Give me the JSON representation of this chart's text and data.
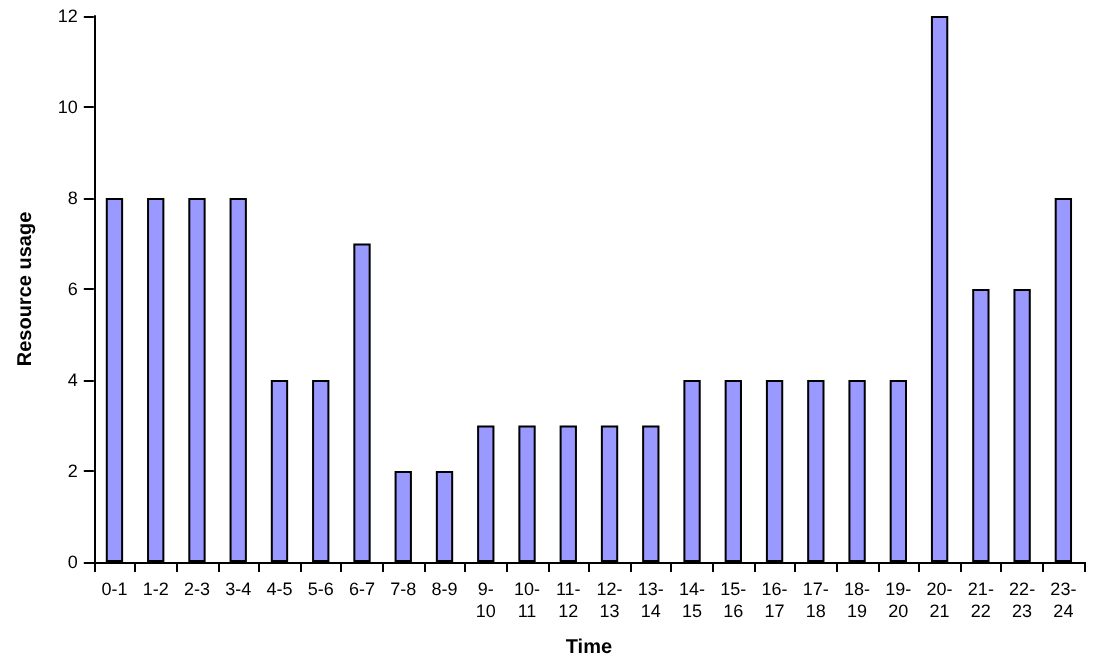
{
  "chart_data": {
    "type": "bar",
    "xlabel": "Time",
    "ylabel": "Resource usage",
    "categories": [
      "0-1",
      "1-2",
      "2-3",
      "3-4",
      "4-5",
      "5-6",
      "6-7",
      "7-8",
      "8-9",
      "9-10",
      "10-11",
      "11-12",
      "12-13",
      "13-14",
      "14-15",
      "15-16",
      "16-17",
      "17-18",
      "18-19",
      "19-20",
      "20-21",
      "21-22",
      "22-23",
      "23-24"
    ],
    "values": [
      8,
      8,
      8,
      8,
      4,
      4,
      7,
      2,
      2,
      3,
      3,
      3,
      3,
      3,
      4,
      4,
      4,
      4,
      4,
      4,
      12,
      6,
      6,
      8
    ],
    "color": "#9999ff",
    "ylim": [
      0,
      12
    ],
    "yticks": [
      0,
      2,
      4,
      6,
      8,
      10,
      12
    ],
    "grid": false
  }
}
